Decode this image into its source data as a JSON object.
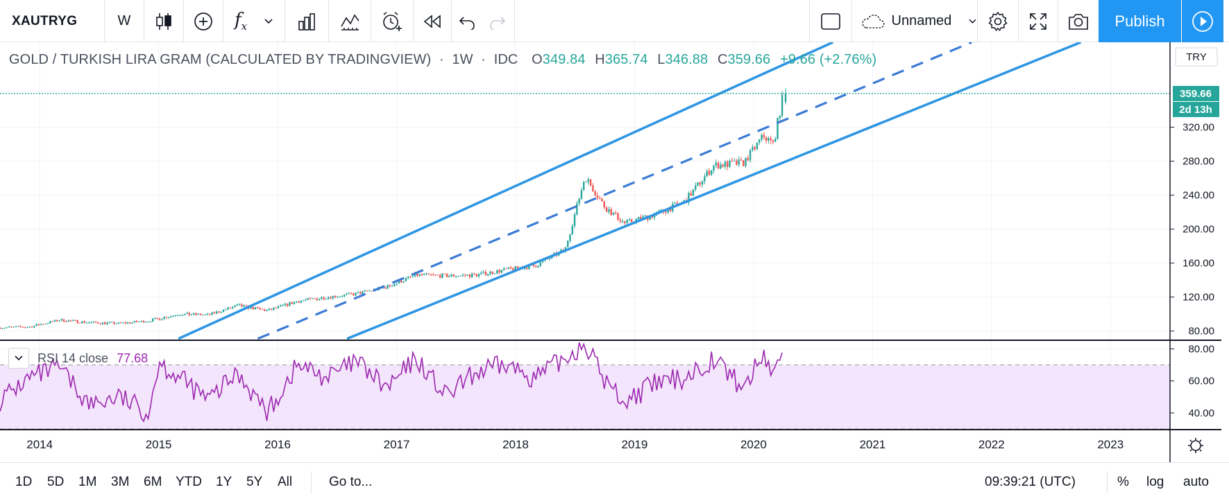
{
  "toolbar": {
    "symbol": "XAUTRYG",
    "interval": "W",
    "fx_label": "f",
    "fx_sub": "x",
    "layout_name": "Unnamed",
    "publish_label": "Publish"
  },
  "legend": {
    "title": "GOLD / TURKISH LIRA GRAM (CALCULATED BY TRADINGVIEW)",
    "sep": "·",
    "interval": "1W",
    "source": "IDC",
    "open_key": "O",
    "open": "349.84",
    "high_key": "H",
    "high": "365.74",
    "low_key": "L",
    "low": "346.88",
    "close_key": "C",
    "close": "359.66",
    "change": "+9.66 (+2.76%)"
  },
  "price_axis": {
    "currency": "TRY",
    "last_price": "359.66",
    "countdown": "2d 13h",
    "ticks": [
      "320.00",
      "280.00",
      "240.00",
      "200.00",
      "160.00",
      "120.00",
      "80.00"
    ]
  },
  "rsi": {
    "label": "RSI 14 close",
    "value": "77.68",
    "ticks": [
      "80.00",
      "60.00",
      "40.00"
    ]
  },
  "time_axis": {
    "ticks": [
      "2014",
      "2015",
      "2016",
      "2017",
      "2018",
      "2019",
      "2020",
      "2021",
      "2022",
      "2023"
    ]
  },
  "bottom": {
    "ranges": [
      "1D",
      "5D",
      "1M",
      "3M",
      "6M",
      "YTD",
      "1Y",
      "5Y",
      "All"
    ],
    "goto": "Go to...",
    "time": "09:39:21 (UTC)",
    "percent": "%",
    "log": "log",
    "auto": "auto"
  },
  "colors": {
    "up": "#26a69a",
    "down": "#ef5350",
    "channel": "#2f96e3",
    "rsi": "#9c27b0",
    "rsi_band": "#f3e5fb",
    "accent": "#2196f3",
    "last_price_label": "#26a69a"
  },
  "chart_data": {
    "type": "candlestick",
    "title": "GOLD / TURKISH LIRA GRAM (CALCULATED BY TRADINGVIEW)",
    "interval": "1W",
    "x_range": [
      "2013-09",
      "2023-07"
    ],
    "ylim": [
      70,
      420
    ],
    "close_points": [
      [
        "2013-09",
        84
      ],
      [
        "2013-12",
        85
      ],
      [
        "2014-03",
        93
      ],
      [
        "2014-06",
        90
      ],
      [
        "2014-09",
        89
      ],
      [
        "2014-12",
        92
      ],
      [
        "2015-03",
        100
      ],
      [
        "2015-06",
        99
      ],
      [
        "2015-09",
        110
      ],
      [
        "2015-12",
        104
      ],
      [
        "2016-03",
        115
      ],
      [
        "2016-06",
        120
      ],
      [
        "2016-09",
        124
      ],
      [
        "2016-12",
        132
      ],
      [
        "2017-03",
        146
      ],
      [
        "2017-06",
        145
      ],
      [
        "2017-09",
        146
      ],
      [
        "2017-12",
        152
      ],
      [
        "2018-03",
        157
      ],
      [
        "2018-06",
        176
      ],
      [
        "2018-08",
        262
      ],
      [
        "2018-10",
        226
      ],
      [
        "2018-12",
        207
      ],
      [
        "2019-03",
        217
      ],
      [
        "2019-06",
        232
      ],
      [
        "2019-09",
        275
      ],
      [
        "2019-12",
        278
      ],
      [
        "2020-02",
        310
      ],
      [
        "2020-03",
        300
      ],
      [
        "2020-04",
        359.66
      ]
    ],
    "channel": {
      "upper": [
        [
          "2015-03",
          71
        ],
        [
          "2020-09",
          420
        ]
      ],
      "middle": [
        [
          "2015-11",
          71
        ],
        [
          "2021-11",
          420
        ]
      ],
      "lower": [
        [
          "2016-08",
          71
        ],
        [
          "2022-10",
          420
        ]
      ]
    },
    "last": {
      "open": 349.84,
      "high": 365.74,
      "low": 346.88,
      "close": 359.66,
      "change": 9.66,
      "change_pct": 2.76
    },
    "rsi": {
      "label": "RSI 14 close",
      "ylim": [
        30,
        85
      ],
      "bands": [
        30,
        70
      ],
      "last": 77.68,
      "points": [
        [
          "2013-09",
          48
        ],
        [
          "2013-12",
          62
        ],
        [
          "2014-03",
          68
        ],
        [
          "2014-06",
          45
        ],
        [
          "2014-09",
          50
        ],
        [
          "2014-12",
          40
        ],
        [
          "2015-01",
          72
        ],
        [
          "2015-06",
          48
        ],
        [
          "2015-09",
          65
        ],
        [
          "2015-12",
          40
        ],
        [
          "2016-03",
          70
        ],
        [
          "2016-06",
          62
        ],
        [
          "2016-09",
          72
        ],
        [
          "2016-12",
          55
        ],
        [
          "2017-03",
          74
        ],
        [
          "2017-06",
          50
        ],
        [
          "2017-09",
          65
        ],
        [
          "2017-12",
          70
        ],
        [
          "2018-03",
          62
        ],
        [
          "2018-06",
          74
        ],
        [
          "2018-08",
          84
        ],
        [
          "2018-10",
          60
        ],
        [
          "2018-12",
          47
        ],
        [
          "2019-03",
          58
        ],
        [
          "2019-06",
          62
        ],
        [
          "2019-09",
          74
        ],
        [
          "2019-12",
          55
        ],
        [
          "2020-02",
          77
        ],
        [
          "2020-03",
          64
        ],
        [
          "2020-04",
          77.68
        ]
      ]
    },
    "xlabel": "",
    "ylabel": ""
  }
}
